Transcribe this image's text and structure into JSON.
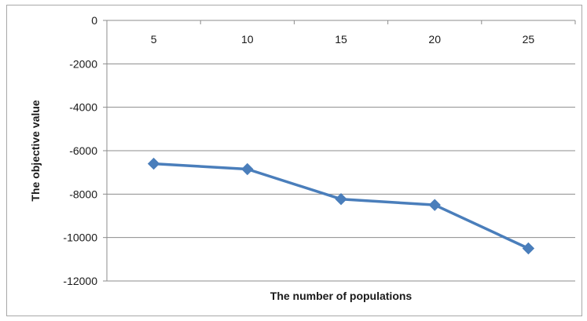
{
  "chart_data": {
    "type": "line",
    "categories": [
      "5",
      "10",
      "15",
      "20",
      "25"
    ],
    "series": [
      {
        "values": [
          -6600,
          -6850,
          -8230,
          -8500,
          -10500
        ],
        "color": "#4a7ebb",
        "marker": "diamond"
      }
    ],
    "title": "",
    "xlabel": "The number of populations",
    "ylabel": "The objective value",
    "ylim": [
      -12000,
      0
    ],
    "yticks": [
      "0",
      "-2000",
      "-4000",
      "-6000",
      "-8000",
      "-10000",
      "-12000"
    ],
    "x_axis_position": "top",
    "grid": "horizontal",
    "legend": "none"
  }
}
